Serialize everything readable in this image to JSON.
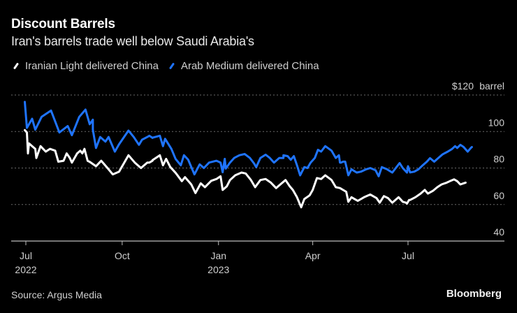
{
  "header": {
    "title": "Discount Barrels",
    "subtitle": "Iran's barrels trade well below Saudi Arabia's"
  },
  "footer": {
    "source": "Source: Argus Media",
    "brand": "Bloomberg"
  },
  "colors": {
    "background": "#000000",
    "iranian": "#ffffff",
    "arab": "#1f74ff",
    "grid": "#6b6b6b",
    "axis": "#bdbdbd"
  },
  "chart_data": {
    "type": "line",
    "title": "Discount Barrels",
    "subtitle": "Iran's barrels trade well below Saudi Arabia's",
    "xlabel": "",
    "ylabel": "$ per barrel",
    "y_unit_label": "barrel",
    "ylim": [
      40,
      120
    ],
    "yticks": [
      {
        "value": 120,
        "label": "$120"
      },
      {
        "value": 100,
        "label": "100"
      },
      {
        "value": 80,
        "label": "80"
      },
      {
        "value": 60,
        "label": "60"
      },
      {
        "value": 40,
        "label": "40"
      }
    ],
    "x_unit": "days since 2022-07-01",
    "xlim": [
      -14,
      462
    ],
    "xticks": [
      {
        "value": 0,
        "label": "Jul",
        "sublabel": "2022"
      },
      {
        "value": 92,
        "label": "Oct",
        "sublabel": ""
      },
      {
        "value": 184,
        "label": "Jan",
        "sublabel": "2023"
      },
      {
        "value": 274,
        "label": "Apr",
        "sublabel": ""
      },
      {
        "value": 365,
        "label": "Jul",
        "sublabel": ""
      }
    ],
    "grid": true,
    "legend_position": "top-left",
    "series": [
      {
        "name": "Iranian Light delivered China",
        "color": "#ffffff",
        "points": [
          [
            -1,
            100.8
          ],
          [
            1,
            99.5
          ],
          [
            2,
            88
          ],
          [
            3,
            93.5
          ],
          [
            6,
            92
          ],
          [
            9,
            90.5
          ],
          [
            10,
            85.5
          ],
          [
            14,
            92
          ],
          [
            19,
            89
          ],
          [
            23,
            90.5
          ],
          [
            28,
            89.5
          ],
          [
            31,
            83.5
          ],
          [
            36,
            84
          ],
          [
            39,
            88
          ],
          [
            42,
            85.5
          ],
          [
            44,
            83
          ],
          [
            49,
            88
          ],
          [
            52,
            89.5
          ],
          [
            54,
            88
          ],
          [
            56,
            90.5
          ],
          [
            59,
            84
          ],
          [
            61,
            83.4
          ],
          [
            67,
            81
          ],
          [
            72,
            84
          ],
          [
            78,
            80
          ],
          [
            83,
            76.5
          ],
          [
            89,
            78
          ],
          [
            98,
            87
          ],
          [
            104,
            83
          ],
          [
            110,
            80
          ],
          [
            116,
            83
          ],
          [
            121,
            84
          ],
          [
            118,
            83
          ],
          [
            121,
            84.3
          ],
          [
            128,
            87
          ],
          [
            131,
            81.5
          ],
          [
            134,
            85
          ],
          [
            138,
            80.5
          ],
          [
            143,
            77.4
          ],
          [
            149,
            72.8
          ],
          [
            152,
            75
          ],
          [
            158,
            71
          ],
          [
            162,
            66.3
          ],
          [
            167,
            71.6
          ],
          [
            171,
            69.5
          ],
          [
            177,
            73
          ],
          [
            182,
            74
          ],
          [
            186,
            75.5
          ],
          [
            188,
            68
          ],
          [
            192,
            70
          ],
          [
            195,
            73.4
          ],
          [
            200,
            76
          ],
          [
            206,
            77.5
          ],
          [
            210,
            77
          ],
          [
            215,
            73.4
          ],
          [
            219,
            69.5
          ],
          [
            224,
            73.4
          ],
          [
            229,
            74
          ],
          [
            234,
            72
          ],
          [
            239,
            69
          ],
          [
            243,
            71
          ],
          [
            248,
            73.4
          ],
          [
            252,
            70
          ],
          [
            255,
            68
          ],
          [
            259,
            64
          ],
          [
            263,
            58.5
          ],
          [
            266,
            63
          ],
          [
            271,
            65
          ],
          [
            274,
            68
          ],
          [
            278,
            74.5
          ],
          [
            282,
            74
          ],
          [
            286,
            76
          ],
          [
            292,
            73.4
          ],
          [
            296,
            69.5
          ],
          [
            300,
            69
          ],
          [
            303,
            68
          ],
          [
            306,
            67
          ],
          [
            308,
            61.5
          ],
          [
            311,
            64
          ],
          [
            317,
            62
          ],
          [
            323,
            64
          ],
          [
            329,
            65.5
          ],
          [
            335,
            63.5
          ],
          [
            338,
            61
          ],
          [
            342,
            64.6
          ],
          [
            346,
            63.5
          ],
          [
            350,
            61
          ],
          [
            356,
            64
          ],
          [
            360,
            61.5
          ],
          [
            364,
            60.5
          ],
          [
            366,
            62.5
          ],
          [
            363,
            61
          ],
          [
            367,
            62.5
          ],
          [
            372,
            64
          ],
          [
            377,
            66
          ],
          [
            381,
            68
          ],
          [
            384,
            66
          ],
          [
            389,
            67.6
          ],
          [
            393,
            69.5
          ],
          [
            397,
            71
          ],
          [
            402,
            72
          ],
          [
            405,
            72.8
          ],
          [
            409,
            73.8
          ],
          [
            412,
            72.8
          ],
          [
            415,
            71
          ],
          [
            420,
            72
          ]
        ]
      },
      {
        "name": "Arab Medium delivered China",
        "color": "#1f74ff",
        "points": [
          [
            -1,
            116.2
          ],
          [
            1,
            102
          ],
          [
            6,
            107
          ],
          [
            9,
            101
          ],
          [
            15,
            108
          ],
          [
            24,
            111.5
          ],
          [
            32,
            99.5
          ],
          [
            40,
            103
          ],
          [
            44,
            98
          ],
          [
            51,
            108
          ],
          [
            57,
            112
          ],
          [
            61,
            104
          ],
          [
            64,
            106.5
          ],
          [
            64,
            101
          ],
          [
            67,
            91
          ],
          [
            71,
            97
          ],
          [
            76,
            94.5
          ],
          [
            79,
            97
          ],
          [
            85,
            89
          ],
          [
            89,
            93
          ],
          [
            98,
            100.5
          ],
          [
            103,
            97
          ],
          [
            108,
            92.7
          ],
          [
            111,
            95.5
          ],
          [
            116,
            97
          ],
          [
            121,
            96.5
          ],
          [
            118,
            97.7
          ],
          [
            121,
            96.6
          ],
          [
            128,
            97.7
          ],
          [
            131,
            92
          ],
          [
            133,
            96
          ],
          [
            139,
            90.5
          ],
          [
            143,
            85
          ],
          [
            148,
            81.5
          ],
          [
            151,
            87
          ],
          [
            155,
            84.6
          ],
          [
            161,
            76.5
          ],
          [
            166,
            82
          ],
          [
            170,
            80
          ],
          [
            175,
            83
          ],
          [
            182,
            84
          ],
          [
            184,
            83.5
          ],
          [
            186,
            83
          ],
          [
            190,
            85
          ],
          [
            188,
            77.7
          ],
          [
            191,
            79.7
          ],
          [
            195,
            83
          ],
          [
            199,
            85.5
          ],
          [
            204,
            87
          ],
          [
            209,
            87.7
          ],
          [
            214,
            85.5
          ],
          [
            218,
            82.5
          ],
          [
            220,
            80.5
          ],
          [
            224,
            85.5
          ],
          [
            229,
            87.3
          ],
          [
            233,
            85.5
          ],
          [
            237,
            83
          ],
          [
            242,
            85.5
          ],
          [
            246,
            85.5
          ],
          [
            246,
            87
          ],
          [
            250,
            86.5
          ],
          [
            253,
            84.5
          ],
          [
            256,
            86.5
          ],
          [
            259,
            81.5
          ],
          [
            262,
            76
          ],
          [
            266,
            80.5
          ],
          [
            269,
            80
          ],
          [
            272,
            83
          ],
          [
            276,
            85.5
          ],
          [
            279,
            90
          ],
          [
            282,
            89
          ],
          [
            286,
            92
          ],
          [
            292,
            89.5
          ],
          [
            296,
            85.5
          ],
          [
            300,
            83
          ],
          [
            303,
            83.5
          ],
          [
            299,
            87
          ],
          [
            301,
            83
          ],
          [
            305,
            83.5
          ],
          [
            308,
            76
          ],
          [
            311,
            79.3
          ],
          [
            316,
            77.5
          ],
          [
            320,
            78
          ],
          [
            325,
            79.3
          ],
          [
            329,
            80
          ],
          [
            334,
            78.8
          ],
          [
            337,
            75.5
          ],
          [
            340,
            80.5
          ],
          [
            345,
            79.3
          ],
          [
            350,
            77.5
          ],
          [
            354,
            80.5
          ],
          [
            357,
            82.7
          ],
          [
            360,
            80
          ],
          [
            364,
            77.5
          ],
          [
            365,
            81
          ],
          [
            367,
            77.6
          ],
          [
            371,
            78
          ],
          [
            375,
            79.3
          ],
          [
            379,
            81.5
          ],
          [
            383,
            83.5
          ],
          [
            386,
            85.4
          ],
          [
            390,
            83.5
          ],
          [
            393,
            85
          ],
          [
            398,
            87.5
          ],
          [
            403,
            89
          ],
          [
            407,
            90.4
          ],
          [
            410,
            92
          ],
          [
            412,
            91
          ],
          [
            415,
            92.7
          ],
          [
            418,
            91.6
          ],
          [
            422,
            89
          ],
          [
            425,
            91
          ],
          [
            426,
            91.5
          ]
        ]
      }
    ]
  }
}
